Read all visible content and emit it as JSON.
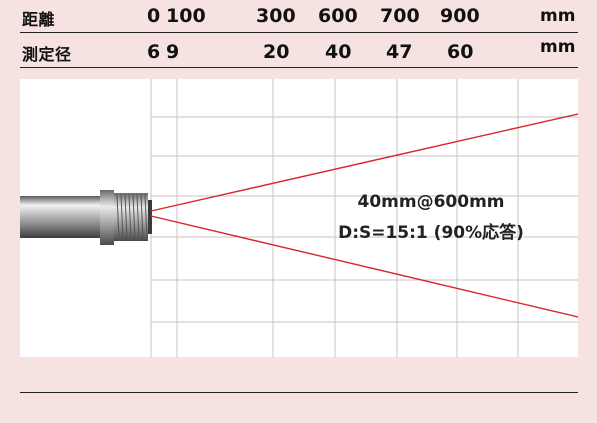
{
  "distance_row": {
    "label": "距離",
    "values": [
      "0",
      "100",
      "300",
      "600",
      "700",
      "900"
    ],
    "unit": "mm"
  },
  "spot_row": {
    "label": "測定径",
    "values": [
      "6",
      "9",
      "20",
      "40",
      "47",
      "60"
    ],
    "unit": "mm"
  },
  "diagram": {
    "spot_text": "40mm@600mm",
    "ratio_text": "D:S=15:1 (90%応答)",
    "beam_color": "#d9262e",
    "background_color": "#f6e3e1",
    "panel_color": "#ffffff",
    "grid_color": "#c4c4c4",
    "sensor_icon": "cylindrical-sensor-probe"
  }
}
